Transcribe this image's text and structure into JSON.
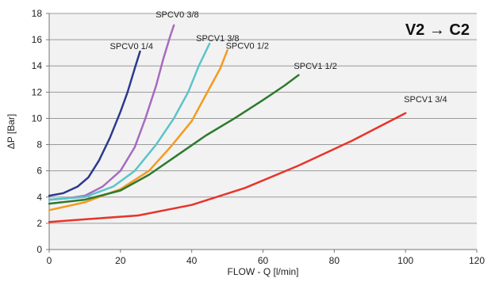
{
  "chart_data": {
    "type": "line",
    "title": "V2 → C2",
    "xlabel": "FLOW - Q [l/min]",
    "ylabel": "ΔP [Bar]",
    "xlim": [
      0,
      120
    ],
    "ylim": [
      0,
      18
    ],
    "x_ticks": [
      "0",
      "20",
      "40",
      "60",
      "80",
      "100",
      "120"
    ],
    "y_ticks": [
      "0",
      "2",
      "4",
      "6",
      "8",
      "10",
      "12",
      "14",
      "16",
      "18"
    ],
    "grid": "horizontal",
    "background": "#f2f2f2",
    "series": [
      {
        "name": "SPCV0 1/4",
        "color": "#2b3a8f",
        "points": [
          [
            0,
            4.1
          ],
          [
            4,
            4.3
          ],
          [
            8,
            4.8
          ],
          [
            11,
            5.5
          ],
          [
            14,
            6.8
          ],
          [
            17,
            8.5
          ],
          [
            20,
            10.5
          ],
          [
            22,
            12.0
          ],
          [
            24,
            13.8
          ],
          [
            25.5,
            15.1
          ]
        ]
      },
      {
        "name": "SPCV0 3/8",
        "color": "#a66bc0",
        "points": [
          [
            0,
            3.8
          ],
          [
            5,
            3.9
          ],
          [
            10,
            4.1
          ],
          [
            15,
            4.8
          ],
          [
            20,
            6.0
          ],
          [
            24,
            7.8
          ],
          [
            27,
            10.0
          ],
          [
            30,
            12.5
          ],
          [
            32,
            14.5
          ],
          [
            34,
            16.3
          ],
          [
            35,
            17.1
          ]
        ]
      },
      {
        "name": "SPCV1 3/8",
        "color": "#5bc4c8",
        "points": [
          [
            0,
            3.8
          ],
          [
            10,
            4.0
          ],
          [
            18,
            4.8
          ],
          [
            24,
            6.0
          ],
          [
            30,
            8.0
          ],
          [
            35,
            10.0
          ],
          [
            39,
            12.0
          ],
          [
            42,
            14.0
          ],
          [
            45,
            15.7
          ]
        ]
      },
      {
        "name": "SPCV0 1/2",
        "color": "#f59a1f",
        "points": [
          [
            0,
            3.0
          ],
          [
            10,
            3.6
          ],
          [
            20,
            4.6
          ],
          [
            28,
            6.0
          ],
          [
            34,
            7.8
          ],
          [
            40,
            9.8
          ],
          [
            44,
            11.8
          ],
          [
            48,
            13.8
          ],
          [
            50,
            15.2
          ]
        ]
      },
      {
        "name": "SPCV1 1/2",
        "color": "#2e7a2e",
        "points": [
          [
            0,
            3.5
          ],
          [
            10,
            3.8
          ],
          [
            20,
            4.5
          ],
          [
            28,
            5.7
          ],
          [
            36,
            7.2
          ],
          [
            44,
            8.7
          ],
          [
            52,
            10.0
          ],
          [
            60,
            11.4
          ],
          [
            66,
            12.5
          ],
          [
            70,
            13.3
          ]
        ]
      },
      {
        "name": "SPCV1 3/4",
        "color": "#e8342a",
        "points": [
          [
            0,
            2.1
          ],
          [
            10,
            2.3
          ],
          [
            25,
            2.6
          ],
          [
            40,
            3.4
          ],
          [
            55,
            4.7
          ],
          [
            70,
            6.4
          ],
          [
            85,
            8.3
          ],
          [
            100,
            10.4
          ]
        ]
      }
    ]
  }
}
